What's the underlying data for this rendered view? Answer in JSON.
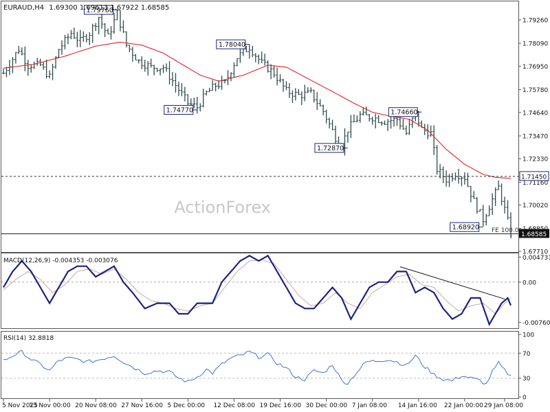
{
  "chart_data": [
    {
      "panel": "price",
      "type": "ohlc",
      "header": {
        "symbol_tf": "EURAUD,H4",
        "values": "1.69300 1.69613 1.67922 1.68585"
      },
      "watermark": "ActionForex",
      "ylim": [
        1.6771,
        1.8015
      ],
      "y_ticks": [
        "1.79260",
        "1.78090",
        "1.76950",
        "1.75780",
        "1.74640",
        "1.73470",
        "1.72330",
        "1.71160",
        "1.70020",
        "1.68850",
        "1.67710"
      ],
      "price_marks": [
        {
          "label": "1.71450",
          "value": 1.7145,
          "style": "dashed-line"
        },
        {
          "label": "1.68585",
          "value": 1.68585,
          "style": "current-price"
        }
      ],
      "fe_label": "FE 100.0",
      "pivot_labels": [
        {
          "text": "1.79760",
          "price": 1.7976,
          "bar": 37
        },
        {
          "text": "1.74770",
          "price": 1.7477,
          "bar": 63
        },
        {
          "text": "1.78040",
          "price": 1.7804,
          "bar": 80
        },
        {
          "text": "1.72870",
          "price": 1.7287,
          "bar": 112
        },
        {
          "text": "1.74660",
          "price": 1.7466,
          "bar": 136
        },
        {
          "text": "1.68920",
          "price": 1.6892,
          "bar": 156
        }
      ],
      "ma_color": "#dd2222",
      "bar_color": "#2e4a4a",
      "price_keypoints": [
        [
          0,
          1.766
        ],
        [
          5,
          1.778
        ],
        [
          8,
          1.77
        ],
        [
          12,
          1.77
        ],
        [
          15,
          1.764
        ],
        [
          18,
          1.778
        ],
        [
          22,
          1.786
        ],
        [
          25,
          1.782
        ],
        [
          28,
          1.786
        ],
        [
          31,
          1.794
        ],
        [
          34,
          1.784
        ],
        [
          37,
          1.796
        ],
        [
          40,
          1.78
        ],
        [
          44,
          1.772
        ],
        [
          48,
          1.769
        ],
        [
          52,
          1.769
        ],
        [
          56,
          1.76
        ],
        [
          60,
          1.751
        ],
        [
          63,
          1.749
        ],
        [
          66,
          1.756
        ],
        [
          69,
          1.76
        ],
        [
          72,
          1.761
        ],
        [
          76,
          1.774
        ],
        [
          80,
          1.779
        ],
        [
          84,
          1.771
        ],
        [
          88,
          1.766
        ],
        [
          92,
          1.757
        ],
        [
          96,
          1.755
        ],
        [
          100,
          1.756
        ],
        [
          104,
          1.747
        ],
        [
          108,
          1.734
        ],
        [
          110,
          1.73
        ],
        [
          112,
          1.738
        ],
        [
          116,
          1.745
        ],
        [
          120,
          1.744
        ],
        [
          124,
          1.742
        ],
        [
          128,
          1.743
        ],
        [
          131,
          1.736
        ],
        [
          134,
          1.746
        ],
        [
          136,
          1.738
        ],
        [
          139,
          1.736
        ],
        [
          141,
          1.718
        ],
        [
          144,
          1.713
        ],
        [
          147,
          1.716
        ],
        [
          150,
          1.714
        ],
        [
          153,
          1.702
        ],
        [
          156,
          1.693
        ],
        [
          159,
          1.703
        ],
        [
          161,
          1.709
        ],
        [
          163,
          1.698
        ],
        [
          165,
          1.686
        ]
      ],
      "ma_keypoints": [
        [
          0,
          1.7685
        ],
        [
          10,
          1.7705
        ],
        [
          20,
          1.7745
        ],
        [
          30,
          1.7795
        ],
        [
          38,
          1.7815
        ],
        [
          45,
          1.78
        ],
        [
          52,
          1.776
        ],
        [
          58,
          1.7705
        ],
        [
          64,
          1.765
        ],
        [
          70,
          1.762
        ],
        [
          78,
          1.765
        ],
        [
          86,
          1.77
        ],
        [
          92,
          1.769
        ],
        [
          100,
          1.7625
        ],
        [
          108,
          1.756
        ],
        [
          114,
          1.751
        ],
        [
          120,
          1.7465
        ],
        [
          126,
          1.7445
        ],
        [
          132,
          1.743
        ],
        [
          138,
          1.7375
        ],
        [
          144,
          1.728
        ],
        [
          150,
          1.7205
        ],
        [
          156,
          1.7155
        ],
        [
          160,
          1.714
        ],
        [
          165,
          1.7135
        ]
      ]
    },
    {
      "panel": "macd",
      "type": "line",
      "header": "MACD(12,26,9) -0.004353 -0.003076",
      "ylim": [
        -0.0086,
        0.0053
      ],
      "y_ticks": [
        {
          "label": "0.004731",
          "value": 0.004731
        },
        {
          "label": "0.00",
          "value": 0.0
        },
        {
          "label": "-0.007601",
          "value": -0.007601
        }
      ],
      "main_color": "#1a237e",
      "signal_color": "#c9a7a7",
      "main_keypoints": [
        [
          0,
          -0.001
        ],
        [
          3,
          0.002
        ],
        [
          6,
          0.004
        ],
        [
          9,
          0.002
        ],
        [
          12,
          -0.001
        ],
        [
          15,
          -0.004
        ],
        [
          18,
          -0.001
        ],
        [
          21,
          0.002
        ],
        [
          24,
          0.003
        ],
        [
          27,
          0.003
        ],
        [
          30,
          0.001
        ],
        [
          33,
          0.002
        ],
        [
          36,
          0.003
        ],
        [
          39,
          0.0
        ],
        [
          42,
          -0.002
        ],
        [
          46,
          -0.005
        ],
        [
          50,
          -0.004
        ],
        [
          54,
          -0.004
        ],
        [
          57,
          -0.006
        ],
        [
          60,
          -0.006
        ],
        [
          63,
          -0.004
        ],
        [
          66,
          -0.004
        ],
        [
          68,
          -0.004
        ],
        [
          71,
          0.0
        ],
        [
          74,
          0.002
        ],
        [
          77,
          0.004
        ],
        [
          80,
          0.005
        ],
        [
          83,
          0.004
        ],
        [
          86,
          0.005
        ],
        [
          89,
          0.002
        ],
        [
          92,
          -0.001
        ],
        [
          95,
          -0.004
        ],
        [
          98,
          -0.005
        ],
        [
          101,
          -0.005
        ],
        [
          104,
          -0.003
        ],
        [
          107,
          -0.001
        ],
        [
          110,
          -0.003
        ],
        [
          113,
          -0.007
        ],
        [
          116,
          -0.004
        ],
        [
          119,
          -0.001
        ],
        [
          122,
          0.0
        ],
        [
          125,
          0.0
        ],
        [
          128,
          0.002
        ],
        [
          131,
          0.002
        ],
        [
          134,
          -0.002
        ],
        [
          137,
          -0.001
        ],
        [
          140,
          -0.002
        ],
        [
          143,
          -0.005
        ],
        [
          146,
          -0.007
        ],
        [
          149,
          -0.006
        ],
        [
          152,
          -0.003
        ],
        [
          155,
          -0.003
        ],
        [
          158,
          -0.008
        ],
        [
          160,
          -0.006
        ],
        [
          162,
          -0.004
        ],
        [
          164,
          -0.003
        ],
        [
          165,
          -0.0044
        ]
      ],
      "signal_keypoints": [
        [
          0,
          -0.0015
        ],
        [
          4,
          0.0005
        ],
        [
          8,
          0.002
        ],
        [
          12,
          0.0005
        ],
        [
          16,
          -0.002
        ],
        [
          20,
          -0.0005
        ],
        [
          24,
          0.002
        ],
        [
          28,
          0.0025
        ],
        [
          32,
          0.0015
        ],
        [
          36,
          0.0025
        ],
        [
          40,
          0.0005
        ],
        [
          44,
          -0.002
        ],
        [
          48,
          -0.0035
        ],
        [
          52,
          -0.004
        ],
        [
          56,
          -0.005
        ],
        [
          60,
          -0.0055
        ],
        [
          64,
          -0.0045
        ],
        [
          68,
          -0.004
        ],
        [
          72,
          -0.001
        ],
        [
          76,
          0.002
        ],
        [
          80,
          0.004
        ],
        [
          84,
          0.0042
        ],
        [
          88,
          0.0035
        ],
        [
          92,
          0.0005
        ],
        [
          96,
          -0.0025
        ],
        [
          100,
          -0.0045
        ],
        [
          104,
          -0.004
        ],
        [
          108,
          -0.002
        ],
        [
          112,
          -0.004
        ],
        [
          116,
          -0.005
        ],
        [
          120,
          -0.002
        ],
        [
          124,
          -0.0005
        ],
        [
          128,
          0.001
        ],
        [
          132,
          0.0015
        ],
        [
          136,
          -0.0005
        ],
        [
          140,
          -0.001
        ],
        [
          144,
          -0.0035
        ],
        [
          148,
          -0.0055
        ],
        [
          152,
          -0.0045
        ],
        [
          156,
          -0.004
        ],
        [
          160,
          -0.006
        ],
        [
          163,
          -0.004
        ],
        [
          165,
          -0.0031
        ]
      ],
      "trendline": {
        "from": [
          129,
          0.0029
        ],
        "to": [
          163,
          -0.0032
        ]
      }
    },
    {
      "panel": "rsi",
      "type": "line",
      "header": "RSI(14) 32.8818",
      "ylim": [
        0,
        100
      ],
      "y_ticks": [
        {
          "label": "100",
          "value": 100
        },
        {
          "label": "70",
          "value": 70
        },
        {
          "label": "30",
          "value": 30
        },
        {
          "label": "0",
          "value": 0
        }
      ],
      "line_color": "#3d77c8",
      "keypoints": [
        [
          0,
          58
        ],
        [
          3,
          66
        ],
        [
          6,
          72
        ],
        [
          9,
          60
        ],
        [
          12,
          52
        ],
        [
          15,
          42
        ],
        [
          18,
          58
        ],
        [
          21,
          62
        ],
        [
          24,
          60
        ],
        [
          27,
          56
        ],
        [
          30,
          58
        ],
        [
          33,
          62
        ],
        [
          36,
          66
        ],
        [
          39,
          56
        ],
        [
          42,
          48
        ],
        [
          46,
          38
        ],
        [
          50,
          42
        ],
        [
          54,
          40
        ],
        [
          57,
          30
        ],
        [
          60,
          24
        ],
        [
          63,
          32
        ],
        [
          66,
          44
        ],
        [
          68,
          38
        ],
        [
          71,
          52
        ],
        [
          74,
          62
        ],
        [
          77,
          66
        ],
        [
          80,
          72
        ],
        [
          83,
          64
        ],
        [
          86,
          68
        ],
        [
          89,
          54
        ],
        [
          92,
          46
        ],
        [
          95,
          32
        ],
        [
          98,
          28
        ],
        [
          101,
          42
        ],
        [
          104,
          38
        ],
        [
          107,
          52
        ],
        [
          110,
          26
        ],
        [
          112,
          22
        ],
        [
          115,
          40
        ],
        [
          118,
          56
        ],
        [
          122,
          58
        ],
        [
          125,
          60
        ],
        [
          128,
          56
        ],
        [
          131,
          50
        ],
        [
          134,
          66
        ],
        [
          137,
          48
        ],
        [
          140,
          36
        ],
        [
          143,
          28
        ],
        [
          146,
          26
        ],
        [
          149,
          34
        ],
        [
          152,
          30
        ],
        [
          155,
          26
        ],
        [
          157,
          20
        ],
        [
          159,
          40
        ],
        [
          161,
          54
        ],
        [
          163,
          42
        ],
        [
          165,
          33
        ]
      ]
    }
  ],
  "x_axis_labels": [
    {
      "text": "5 Nov 2025",
      "bar": 0
    },
    {
      "text": "13 Nov 00:00",
      "bar": 15
    },
    {
      "text": "20 Nov 08:00",
      "bar": 30
    },
    {
      "text": "27 Nov 16:00",
      "bar": 45
    },
    {
      "text": "5 Dec 00:00",
      "bar": 60
    },
    {
      "text": "12 Dec 08:00",
      "bar": 75
    },
    {
      "text": "19 Dec 16:00",
      "bar": 90
    },
    {
      "text": "30 Dec 00:00",
      "bar": 105
    },
    {
      "text": "7 Jan 08:00",
      "bar": 120
    },
    {
      "text": "14 Jan 16:00",
      "bar": 135
    },
    {
      "text": "22 Jan 00:00",
      "bar": 150
    },
    {
      "text": "29 Jan 08:00",
      "bar": 163
    }
  ]
}
